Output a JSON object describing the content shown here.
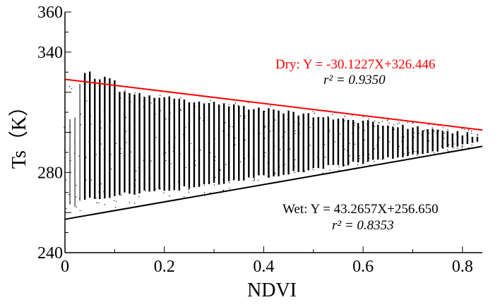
{
  "chart_data": {
    "type": "scatter",
    "title": "",
    "xlabel": "NDVI",
    "ylabel": "Ts（K）",
    "xlim": [
      0,
      0.84
    ],
    "ylim": [
      240,
      360
    ],
    "xticks": [
      0,
      0.2,
      0.4,
      0.6,
      0.8
    ],
    "xtick_labels": [
      "0",
      "0.2",
      "0.4",
      "0.6",
      "0.8"
    ],
    "yticks": [
      240,
      280,
      340,
      360
    ],
    "ytick_labels": [
      "240",
      "280",
      "340",
      "360"
    ],
    "grid": false,
    "colors": {
      "dry": "#ff0000",
      "wet": "#000000",
      "scatter": "#000000"
    },
    "dry_edge": {
      "label": "Dry: Y = -30.1227X+326.446",
      "r2_label": "r² = 0.9350",
      "slope": -30.1227,
      "intercept": 326.446,
      "x_range": [
        0,
        0.84
      ]
    },
    "wet_edge": {
      "label": "Wet: Y = 43.2657X+256.650",
      "r2_label": "r² = 0.8353",
      "slope": 43.2657,
      "intercept": 256.65,
      "x_range": [
        0,
        0.84
      ]
    },
    "scatter_columns": {
      "x_start": 0.0,
      "x_end": 0.83,
      "x_step": 0.01,
      "note": "each NDVI bin spans Ts from near the wet edge to near the dry edge"
    }
  }
}
